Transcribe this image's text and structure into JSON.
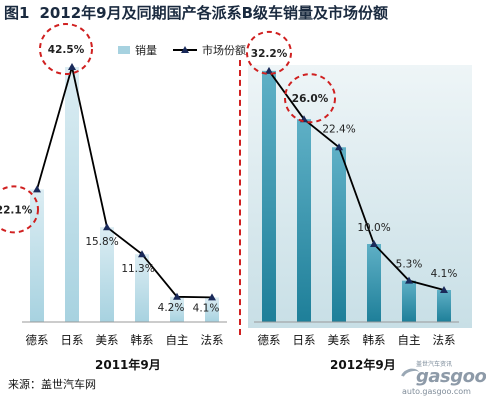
{
  "title": {
    "fig_label": "图1",
    "text": "2012年9月及同期国产各派系B级车销量及市场份额"
  },
  "legend": {
    "sales_label": "销量",
    "share_label": "市场份额"
  },
  "colors": {
    "bar": "#a7d2e0",
    "bar_right": "#2f8fa8",
    "line": "#000000",
    "marker": "#1a2a5a",
    "highlight": "#d02020"
  },
  "chart_data": [
    {
      "type": "bar",
      "period": "2011年9月",
      "categories": [
        "德系",
        "日系",
        "美系",
        "韩系",
        "自主",
        "法系"
      ],
      "series": [
        {
          "name": "销量",
          "values": [
            22.1,
            42.5,
            15.8,
            11.3,
            4.2,
            4.1
          ]
        },
        {
          "name": "市场份额",
          "values": [
            22.1,
            42.5,
            15.8,
            11.3,
            4.2,
            4.1
          ],
          "unit": "%"
        }
      ],
      "value_labels": [
        "22.1%",
        "42.5%",
        "15.8%",
        "11.3%",
        "4.2%",
        "4.1%"
      ],
      "highlighted": [
        "德系",
        "日系"
      ]
    },
    {
      "type": "bar",
      "period": "2012年9月",
      "categories": [
        "德系",
        "日系",
        "美系",
        "韩系",
        "自主",
        "法系"
      ],
      "series": [
        {
          "name": "销量",
          "values": [
            32.2,
            26.0,
            22.4,
            10.0,
            5.3,
            4.1
          ]
        },
        {
          "name": "市场份额",
          "values": [
            32.2,
            26.0,
            22.4,
            10.0,
            5.3,
            4.1
          ],
          "unit": "%"
        }
      ],
      "value_labels": [
        "32.2%",
        "26.0%",
        "22.4%",
        "10.0%",
        "5.3%",
        "4.1%"
      ],
      "highlighted": [
        "德系",
        "日系"
      ]
    }
  ],
  "source": "来源：盖世汽车网",
  "logo": {
    "tagline": "盖世汽车资讯",
    "mark": "gasgoo",
    "url": "auto.gasgoo.com"
  }
}
